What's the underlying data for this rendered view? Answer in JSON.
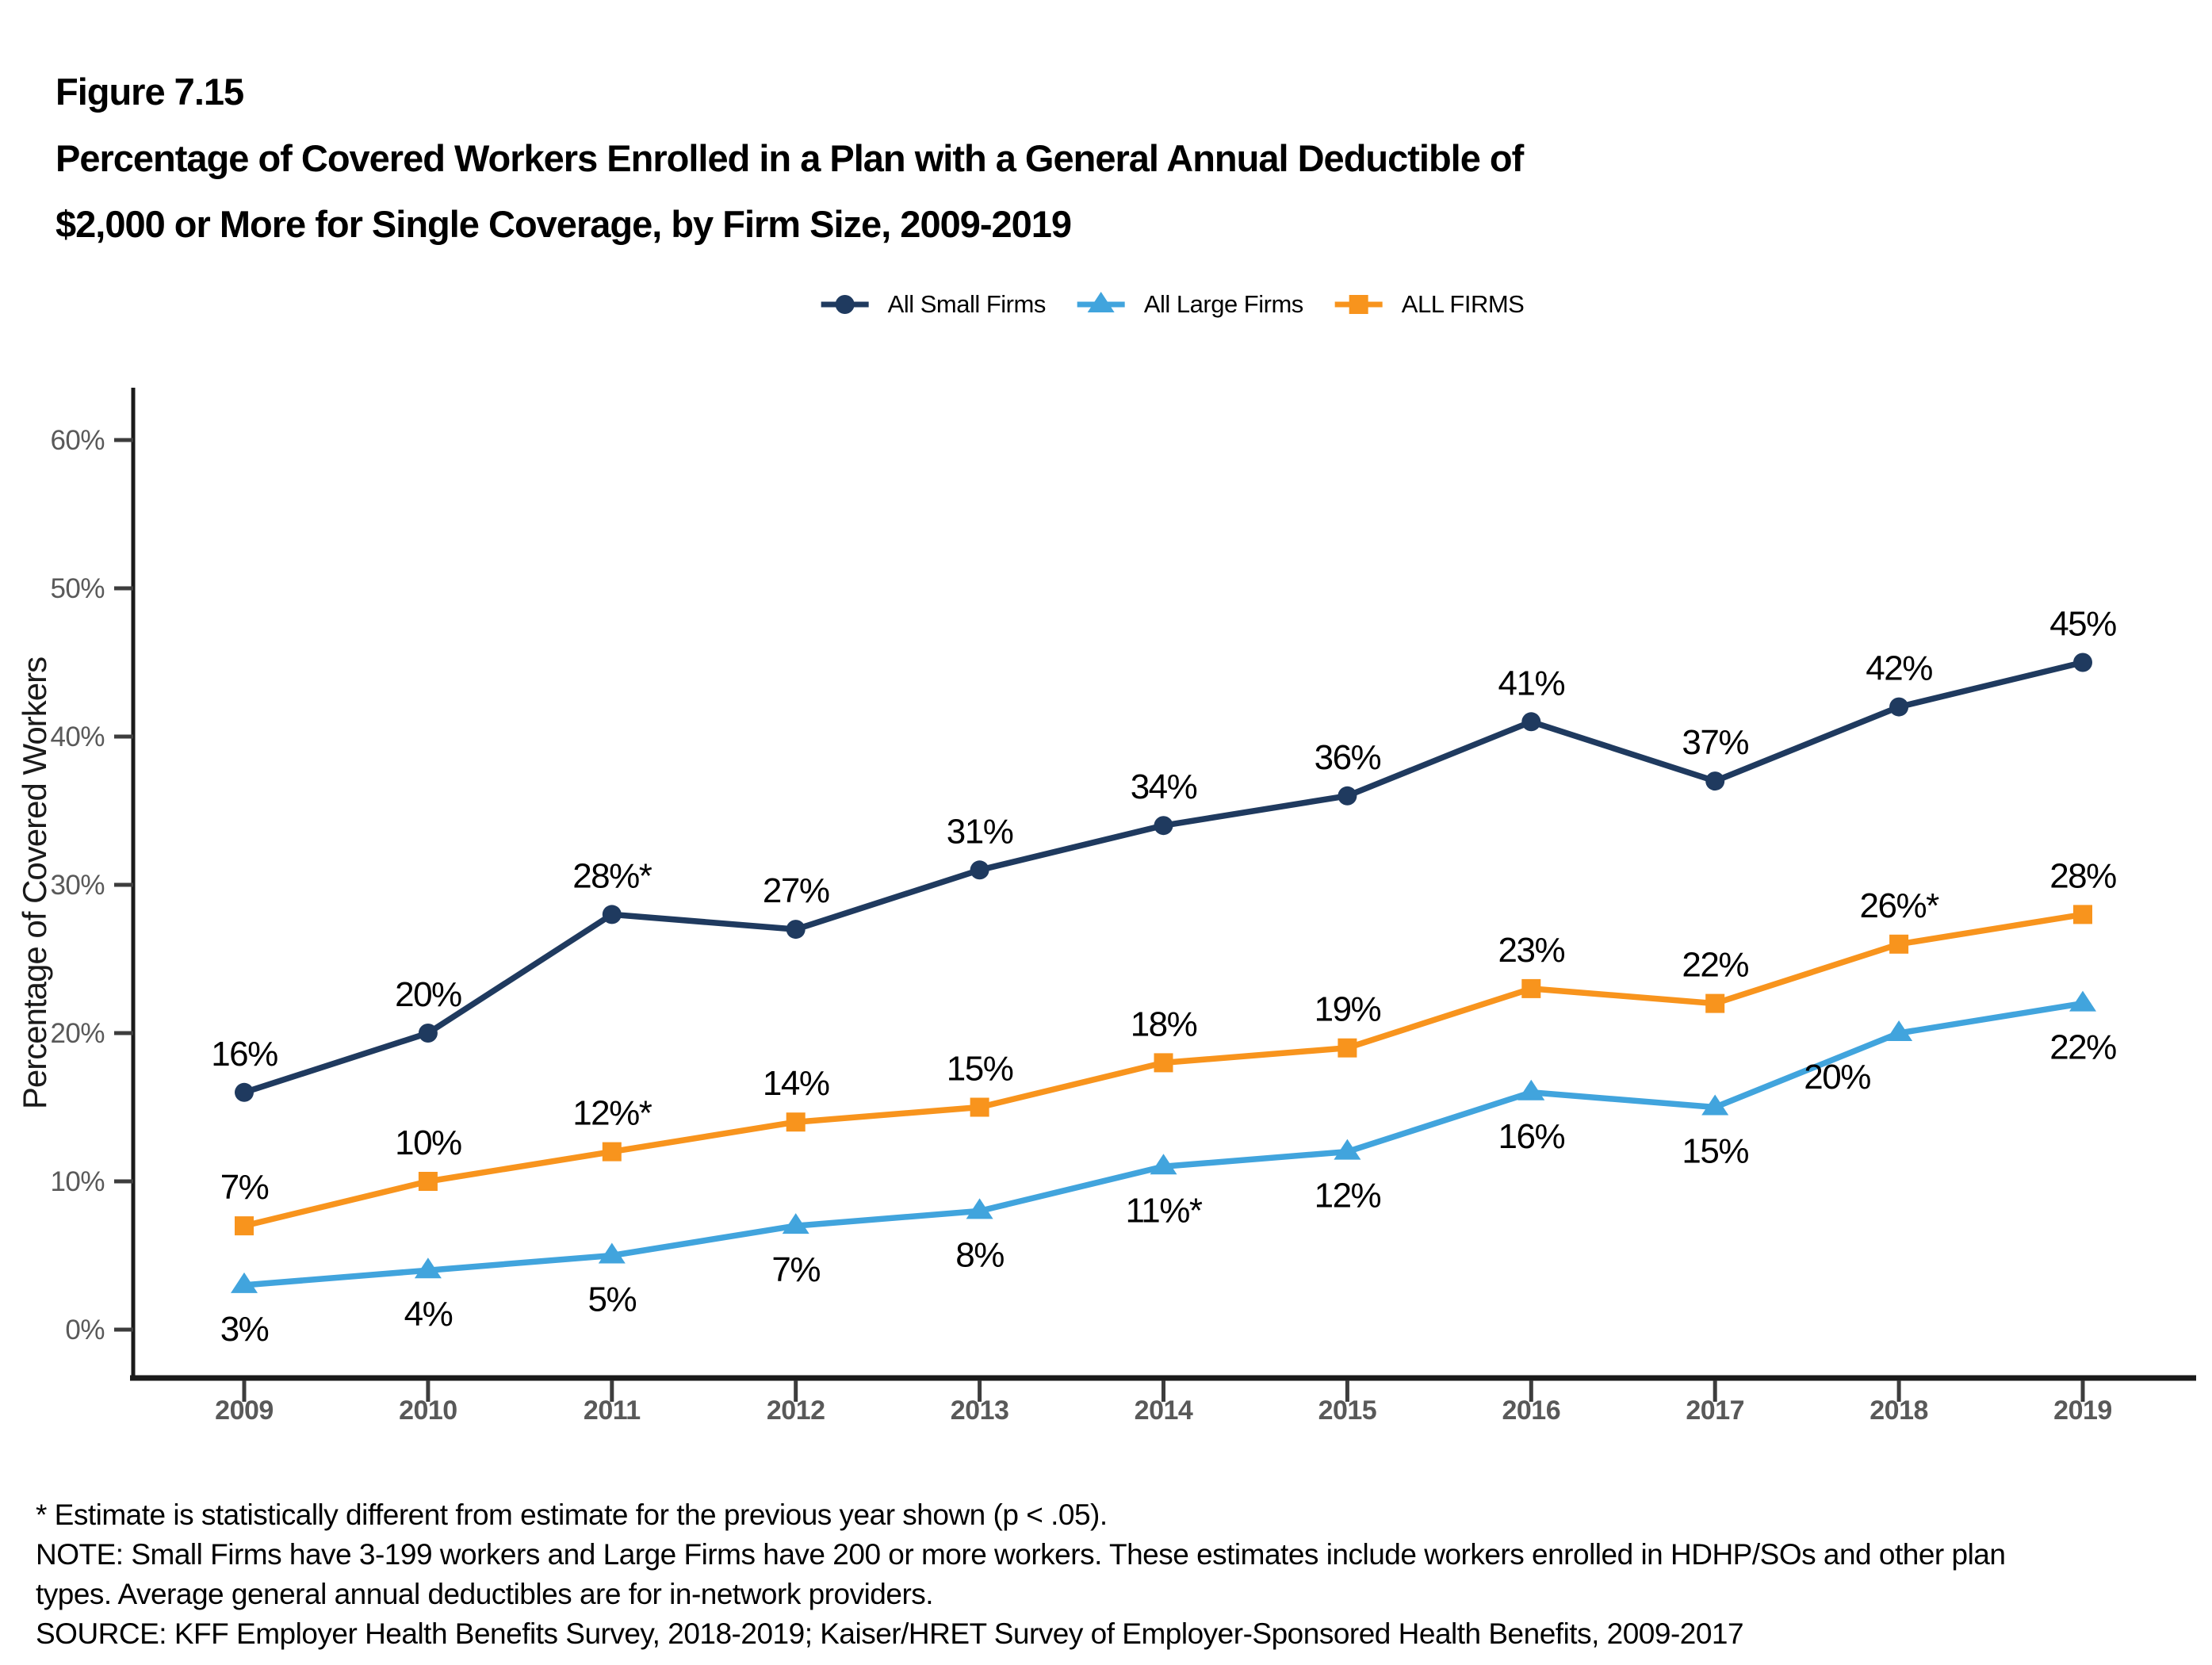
{
  "figure_label": "Figure 7.15",
  "title_lines": [
    "Percentage of Covered Workers Enrolled in a Plan with a General Annual Deductible of",
    "$2,000 or More for Single Coverage, by Firm Size, 2009-2019"
  ],
  "colors": {
    "small_firms_navy": "#1F3A5F",
    "large_firms_blue": "#41A4DD",
    "all_firms_orange": "#F8941D",
    "axis_line": "#1A1A1A",
    "tick_mark": "#3D3D3D",
    "tick_label_gray": "#595959",
    "data_label": "#000000"
  },
  "chart_data": {
    "type": "line",
    "title": "Percentage of Covered Workers Enrolled in a Plan with a General Annual Deductible of $2,000 or More for Single Coverage, by Firm Size, 2009-2019",
    "categories": [
      "2009",
      "2010",
      "2011",
      "2012",
      "2013",
      "2014",
      "2015",
      "2016",
      "2017",
      "2018",
      "2019"
    ],
    "series": [
      {
        "name": "All Small Firms",
        "marker": "circle",
        "color": "#1F3A5F",
        "values": [
          16,
          20,
          28,
          27,
          31,
          34,
          36,
          41,
          37,
          42,
          45
        ],
        "point_labels": [
          "16%",
          "20%",
          "28%*",
          "27%",
          "31%",
          "34%",
          "36%",
          "41%",
          "37%",
          "42%",
          "45%"
        ],
        "label_position": "above"
      },
      {
        "name": "All Large Firms",
        "marker": "triangle",
        "color": "#41A4DD",
        "values": [
          3,
          4,
          5,
          7,
          8,
          11,
          12,
          16,
          15,
          20,
          22
        ],
        "point_labels": [
          "3%",
          "4%",
          "5%",
          "7%",
          "8%",
          "11%*",
          "12%",
          "16%",
          "15%",
          "20%",
          "22%"
        ],
        "label_position": "below"
      },
      {
        "name": "ALL FIRMS",
        "marker": "square",
        "color": "#F8941D",
        "values": [
          7,
          10,
          12,
          14,
          15,
          18,
          19,
          23,
          22,
          26,
          28
        ],
        "point_labels": [
          "7%",
          "10%",
          "12%*",
          "14%",
          "15%",
          "18%",
          "19%",
          "23%",
          "22%",
          "26%*",
          "28%"
        ],
        "label_position": "above"
      }
    ],
    "xlabel": "",
    "ylabel": "Percentage of Covered Workers",
    "yticks": [
      "0%",
      "10%",
      "20%",
      "30%",
      "40%",
      "50%",
      "60%"
    ],
    "ytick_values": [
      0,
      10,
      20,
      30,
      40,
      50,
      60
    ],
    "ylim": [
      0,
      63.5
    ],
    "grid": false,
    "legend_position": "top"
  },
  "footnotes": [
    "* Estimate is statistically different from estimate for the previous year shown (p < .05).",
    "NOTE: Small Firms have 3-199 workers and Large Firms have 200 or more workers. These estimates include workers enrolled in HDHP/SOs and other plan",
    "types. Average general annual deductibles are for in-network providers.",
    "SOURCE: KFF Employer Health Benefits Survey, 2018-2019; Kaiser/HRET Survey of Employer-Sponsored Health Benefits, 2009-2017"
  ]
}
